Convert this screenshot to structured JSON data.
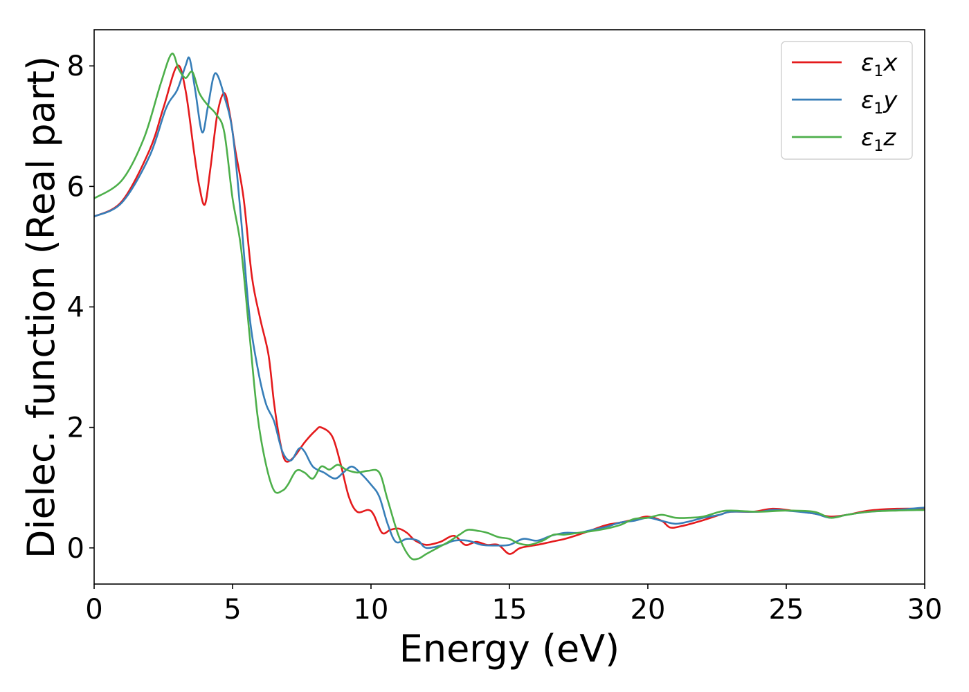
{
  "chart_data": {
    "type": "line",
    "xlabel": "Energy (eV)",
    "ylabel": "Dielec. function (Real part)",
    "xlim": [
      0,
      30
    ],
    "ylim": [
      -0.6,
      8.6
    ],
    "xticks": [
      0,
      5,
      10,
      15,
      20,
      25,
      30
    ],
    "yticks": [
      0,
      2,
      4,
      6,
      8
    ],
    "grid": false,
    "legend_position": "top-right",
    "series": [
      {
        "name": "ε1x",
        "legend_base": "ε",
        "legend_sub": "1",
        "legend_var": "x",
        "color": "#e41a1c",
        "points": [
          [
            0,
            5.5
          ],
          [
            1,
            5.75
          ],
          [
            2,
            6.6
          ],
          [
            2.5,
            7.3
          ],
          [
            3.0,
            8.0
          ],
          [
            3.3,
            7.6
          ],
          [
            3.6,
            6.6
          ],
          [
            3.8,
            6.0
          ],
          [
            4.0,
            5.7
          ],
          [
            4.2,
            6.3
          ],
          [
            4.45,
            7.2
          ],
          [
            4.7,
            7.55
          ],
          [
            4.9,
            7.2
          ],
          [
            5.1,
            6.6
          ],
          [
            5.4,
            5.8
          ],
          [
            5.7,
            4.5
          ],
          [
            6.0,
            3.8
          ],
          [
            6.3,
            3.2
          ],
          [
            6.5,
            2.4
          ],
          [
            6.7,
            1.8
          ],
          [
            6.9,
            1.45
          ],
          [
            7.2,
            1.5
          ],
          [
            7.6,
            1.75
          ],
          [
            8.0,
            1.95
          ],
          [
            8.2,
            2.0
          ],
          [
            8.6,
            1.85
          ],
          [
            8.9,
            1.4
          ],
          [
            9.2,
            0.85
          ],
          [
            9.5,
            0.6
          ],
          [
            9.9,
            0.63
          ],
          [
            10.1,
            0.55
          ],
          [
            10.4,
            0.25
          ],
          [
            10.7,
            0.3
          ],
          [
            11.0,
            0.32
          ],
          [
            11.3,
            0.25
          ],
          [
            11.6,
            0.12
          ],
          [
            12.0,
            0.05
          ],
          [
            12.5,
            0.1
          ],
          [
            13.0,
            0.2
          ],
          [
            13.4,
            0.05
          ],
          [
            13.8,
            0.1
          ],
          [
            14.2,
            0.05
          ],
          [
            14.6,
            0.05
          ],
          [
            15.0,
            -0.1
          ],
          [
            15.4,
            0.0
          ],
          [
            16.0,
            0.05
          ],
          [
            16.5,
            0.1
          ],
          [
            17.0,
            0.15
          ],
          [
            17.5,
            0.22
          ],
          [
            18.0,
            0.3
          ],
          [
            18.5,
            0.38
          ],
          [
            19.0,
            0.42
          ],
          [
            19.5,
            0.47
          ],
          [
            20.0,
            0.52
          ],
          [
            20.5,
            0.45
          ],
          [
            20.8,
            0.34
          ],
          [
            21.2,
            0.36
          ],
          [
            22.0,
            0.46
          ],
          [
            22.6,
            0.55
          ],
          [
            23.0,
            0.6
          ],
          [
            23.8,
            0.6
          ],
          [
            24.5,
            0.65
          ],
          [
            25.2,
            0.62
          ],
          [
            26.0,
            0.57
          ],
          [
            26.6,
            0.52
          ],
          [
            27.2,
            0.55
          ],
          [
            28.0,
            0.62
          ],
          [
            29.0,
            0.65
          ],
          [
            30.0,
            0.65
          ]
        ]
      },
      {
        "name": "ε1y",
        "legend_base": "ε",
        "legend_sub": "1",
        "legend_var": "y",
        "color": "#377eb8",
        "points": [
          [
            0,
            5.5
          ],
          [
            1,
            5.73
          ],
          [
            2,
            6.5
          ],
          [
            2.6,
            7.3
          ],
          [
            3.0,
            7.6
          ],
          [
            3.3,
            8.0
          ],
          [
            3.45,
            8.12
          ],
          [
            3.65,
            7.6
          ],
          [
            3.9,
            6.9
          ],
          [
            4.1,
            7.3
          ],
          [
            4.3,
            7.8
          ],
          [
            4.45,
            7.85
          ],
          [
            4.7,
            7.5
          ],
          [
            5.0,
            6.9
          ],
          [
            5.3,
            5.5
          ],
          [
            5.6,
            3.9
          ],
          [
            5.9,
            3.0
          ],
          [
            6.2,
            2.4
          ],
          [
            6.5,
            2.1
          ],
          [
            6.8,
            1.6
          ],
          [
            7.1,
            1.45
          ],
          [
            7.4,
            1.65
          ],
          [
            7.6,
            1.6
          ],
          [
            7.9,
            1.35
          ],
          [
            8.3,
            1.25
          ],
          [
            8.7,
            1.15
          ],
          [
            9.0,
            1.25
          ],
          [
            9.3,
            1.35
          ],
          [
            9.6,
            1.25
          ],
          [
            10.0,
            1.05
          ],
          [
            10.3,
            0.85
          ],
          [
            10.6,
            0.4
          ],
          [
            10.9,
            0.1
          ],
          [
            11.3,
            0.15
          ],
          [
            11.7,
            0.12
          ],
          [
            12.0,
            0.0
          ],
          [
            12.6,
            0.05
          ],
          [
            13.0,
            0.12
          ],
          [
            13.5,
            0.12
          ],
          [
            14.0,
            0.05
          ],
          [
            14.5,
            0.04
          ],
          [
            15.0,
            0.05
          ],
          [
            15.5,
            0.15
          ],
          [
            16.0,
            0.12
          ],
          [
            16.5,
            0.2
          ],
          [
            17.0,
            0.25
          ],
          [
            17.5,
            0.25
          ],
          [
            18.0,
            0.3
          ],
          [
            18.5,
            0.35
          ],
          [
            19.0,
            0.42
          ],
          [
            19.5,
            0.45
          ],
          [
            20.0,
            0.5
          ],
          [
            20.5,
            0.45
          ],
          [
            21.0,
            0.4
          ],
          [
            21.5,
            0.44
          ],
          [
            22.0,
            0.5
          ],
          [
            22.6,
            0.55
          ],
          [
            23.0,
            0.6
          ],
          [
            24.0,
            0.6
          ],
          [
            24.5,
            0.63
          ],
          [
            25.0,
            0.62
          ],
          [
            26.0,
            0.57
          ],
          [
            26.6,
            0.5
          ],
          [
            27.2,
            0.55
          ],
          [
            28.0,
            0.6
          ],
          [
            29.0,
            0.63
          ],
          [
            30.0,
            0.67
          ]
        ]
      },
      {
        "name": "ε1z",
        "legend_base": "ε",
        "legend_sub": "1",
        "legend_var": "z",
        "color": "#4daf4a",
        "points": [
          [
            0,
            5.8
          ],
          [
            1,
            6.1
          ],
          [
            1.8,
            6.8
          ],
          [
            2.4,
            7.7
          ],
          [
            2.8,
            8.2
          ],
          [
            3.05,
            7.95
          ],
          [
            3.3,
            7.8
          ],
          [
            3.55,
            7.9
          ],
          [
            3.8,
            7.55
          ],
          [
            4.1,
            7.35
          ],
          [
            4.4,
            7.2
          ],
          [
            4.7,
            6.9
          ],
          [
            5.0,
            5.8
          ],
          [
            5.3,
            5.0
          ],
          [
            5.6,
            3.6
          ],
          [
            5.9,
            2.2
          ],
          [
            6.2,
            1.4
          ],
          [
            6.5,
            0.95
          ],
          [
            6.8,
            0.95
          ],
          [
            7.0,
            1.05
          ],
          [
            7.3,
            1.28
          ],
          [
            7.6,
            1.25
          ],
          [
            7.9,
            1.15
          ],
          [
            8.2,
            1.35
          ],
          [
            8.5,
            1.3
          ],
          [
            8.8,
            1.38
          ],
          [
            9.1,
            1.3
          ],
          [
            9.5,
            1.25
          ],
          [
            9.9,
            1.28
          ],
          [
            10.3,
            1.25
          ],
          [
            10.6,
            0.8
          ],
          [
            11.0,
            0.2
          ],
          [
            11.4,
            -0.15
          ],
          [
            11.7,
            -0.18
          ],
          [
            12.0,
            -0.1
          ],
          [
            12.4,
            0.0
          ],
          [
            12.8,
            0.1
          ],
          [
            13.2,
            0.22
          ],
          [
            13.5,
            0.3
          ],
          [
            13.9,
            0.28
          ],
          [
            14.2,
            0.25
          ],
          [
            14.6,
            0.18
          ],
          [
            15.0,
            0.15
          ],
          [
            15.3,
            0.08
          ],
          [
            15.7,
            0.05
          ],
          [
            16.2,
            0.12
          ],
          [
            16.6,
            0.22
          ],
          [
            17.0,
            0.22
          ],
          [
            17.5,
            0.25
          ],
          [
            18.0,
            0.28
          ],
          [
            18.5,
            0.32
          ],
          [
            19.0,
            0.38
          ],
          [
            19.5,
            0.48
          ],
          [
            20.0,
            0.5
          ],
          [
            20.5,
            0.55
          ],
          [
            21.0,
            0.5
          ],
          [
            21.5,
            0.5
          ],
          [
            22.0,
            0.52
          ],
          [
            22.6,
            0.6
          ],
          [
            23.0,
            0.62
          ],
          [
            24.0,
            0.6
          ],
          [
            25.0,
            0.62
          ],
          [
            26.0,
            0.6
          ],
          [
            26.6,
            0.5
          ],
          [
            27.2,
            0.55
          ],
          [
            28.0,
            0.6
          ],
          [
            29.0,
            0.62
          ],
          [
            30.0,
            0.63
          ]
        ]
      }
    ]
  }
}
